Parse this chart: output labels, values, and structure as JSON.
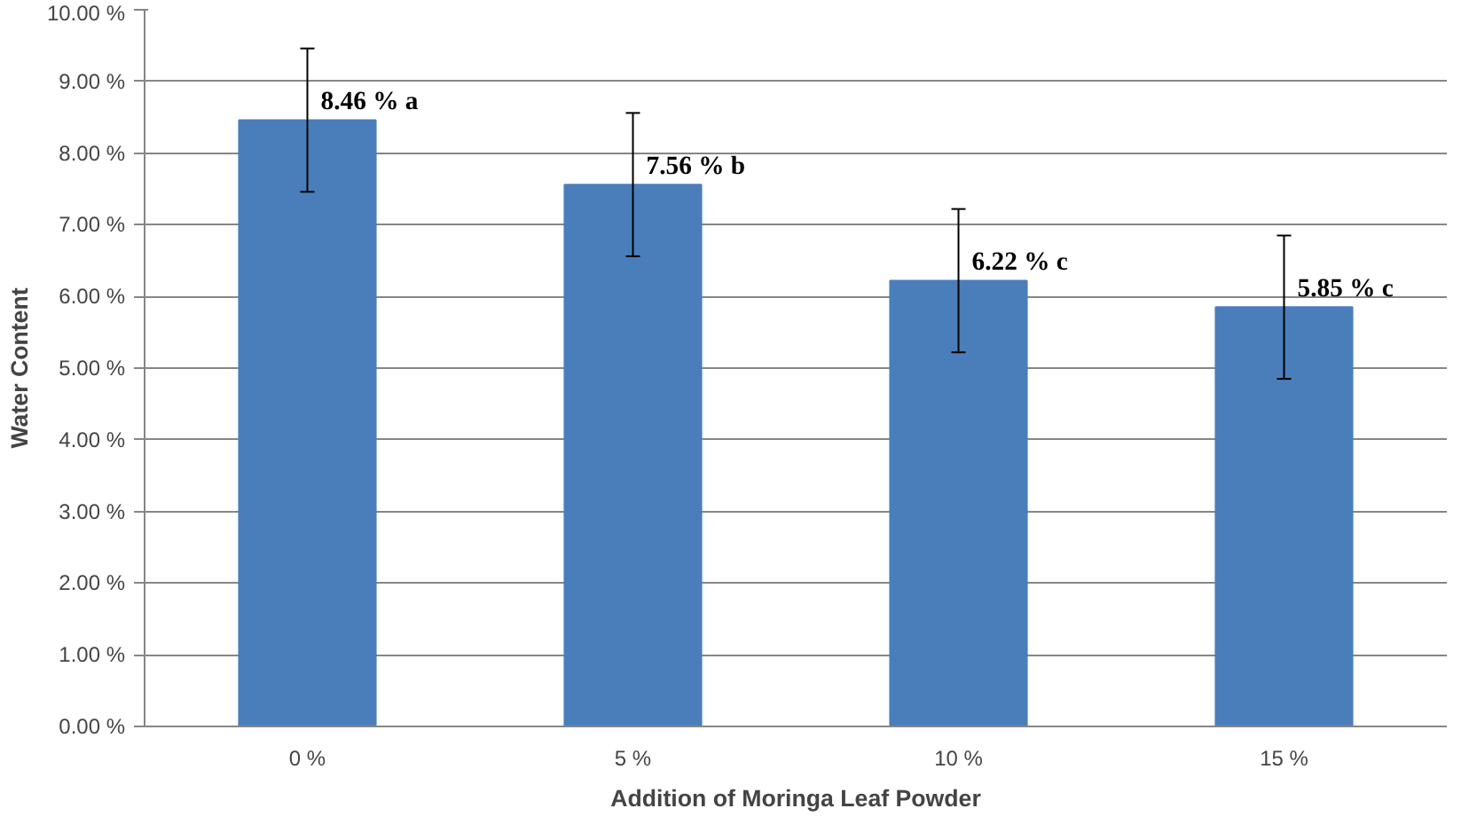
{
  "chart_data": {
    "type": "bar",
    "xlabel": "Addition of Moringa Leaf Powder",
    "ylabel": "Water Content",
    "categories": [
      "0 %",
      "5 %",
      "10 %",
      "15 %"
    ],
    "values": [
      8.46,
      7.56,
      6.22,
      5.85
    ],
    "color": "#4a7ebb",
    "errors": [
      1.0,
      1.0,
      1.0,
      1.0
    ],
    "value_labels": [
      "8.46 % a",
      "7.56 % b",
      "6.22 % c",
      "5.85 % c"
    ],
    "ylim": [
      0,
      10
    ],
    "yticks": [
      {
        "value": 0,
        "label": "0.00 %"
      },
      {
        "value": 1,
        "label": "1.00 %"
      },
      {
        "value": 2,
        "label": "2.00 %"
      },
      {
        "value": 3,
        "label": "3.00 %"
      },
      {
        "value": 4,
        "label": "4.00 %"
      },
      {
        "value": 5,
        "label": "5.00 %"
      },
      {
        "value": 6,
        "label": "6.00 %"
      },
      {
        "value": 7,
        "label": "7.00 %"
      },
      {
        "value": 8,
        "label": "8.00 %"
      },
      {
        "value": 9,
        "label": "9.00 %"
      },
      {
        "value": 10,
        "label": "10.00 %"
      }
    ],
    "grid": "y"
  }
}
